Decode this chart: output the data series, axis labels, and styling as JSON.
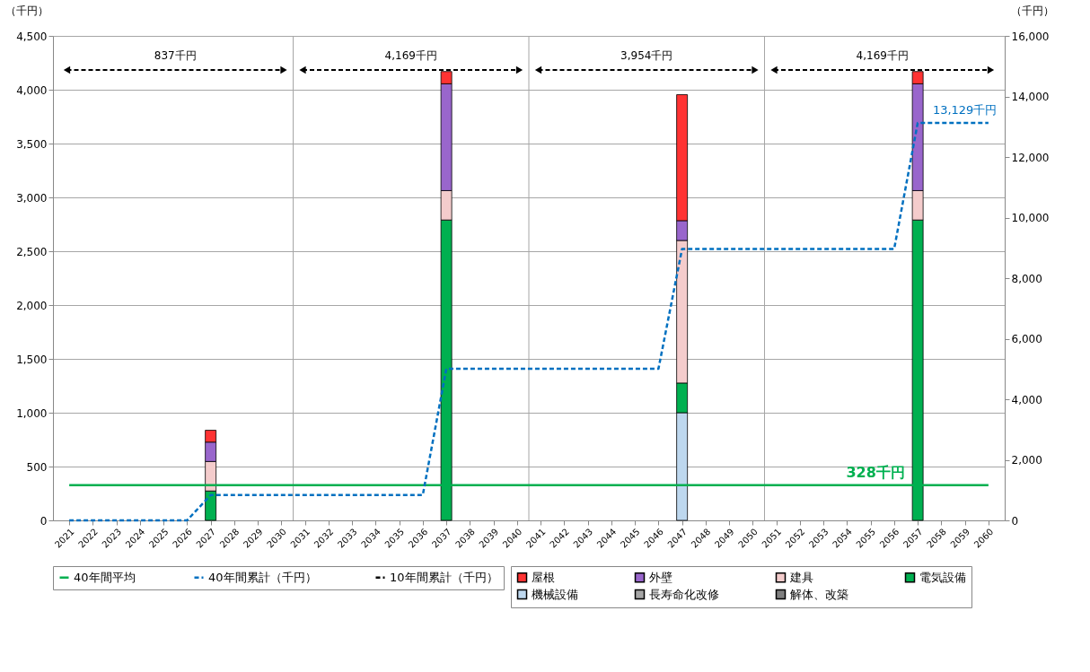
{
  "chart_data": {
    "type": "bar",
    "stacked": true,
    "ylabel": "（千円）",
    "y2label": "（千円）",
    "categories": [
      "2021",
      "2022",
      "2023",
      "2024",
      "2025",
      "2026",
      "2027",
      "2028",
      "2029",
      "2030",
      "2031",
      "2032",
      "2033",
      "2034",
      "2035",
      "2036",
      "2037",
      "2038",
      "2039",
      "2040",
      "2041",
      "2042",
      "2043",
      "2044",
      "2045",
      "2046",
      "2047",
      "2048",
      "2049",
      "2050",
      "2051",
      "2052",
      "2053",
      "2054",
      "2055",
      "2056",
      "2057",
      "2058",
      "2059",
      "2060"
    ],
    "ylim": [
      0,
      4500
    ],
    "yticks": [
      0,
      500,
      {
        "value": 1000,
        "label": "1,000"
      },
      {
        "value": 1500,
        "label": "1,500"
      },
      {
        "value": 2000,
        "label": "2,000"
      },
      {
        "value": 2500,
        "label": "2,500"
      },
      {
        "value": 3000,
        "label": "3,000"
      },
      {
        "value": 3500,
        "label": "3,500"
      },
      {
        "value": 4000,
        "label": "4,000"
      },
      {
        "value": 4500,
        "label": "4,500"
      }
    ],
    "y2lim": [
      0,
      16000
    ],
    "y2ticks": [
      0,
      {
        "value": 2000,
        "label": "2,000"
      },
      {
        "value": 4000,
        "label": "4,000"
      },
      {
        "value": 6000,
        "label": "6,000"
      },
      {
        "value": 8000,
        "label": "8,000"
      },
      {
        "value": 10000,
        "label": "10,000"
      },
      {
        "value": 12000,
        "label": "12,000"
      },
      {
        "value": 14000,
        "label": "14,000"
      },
      {
        "value": 16000,
        "label": "16,000"
      }
    ],
    "grid": "y",
    "legend": "bottom",
    "ref_lines": [
      {
        "axis": "x",
        "value": "2031",
        "color": "#a6a6a6"
      },
      {
        "axis": "x",
        "value": "2041",
        "color": "#a6a6a6"
      },
      {
        "axis": "x",
        "value": "2051",
        "color": "#a6a6a6"
      }
    ],
    "annotations": [
      "837千円",
      "4,169千円",
      "3,954千円",
      "4,169千円"
    ],
    "series": [
      {
        "name": "解体、改築",
        "color": "#7f7f7f",
        "values": [
          null,
          null,
          null,
          null,
          null,
          null,
          null,
          null,
          null,
          null,
          null,
          null,
          null,
          null,
          null,
          null,
          null,
          null,
          null,
          null,
          null,
          null,
          null,
          null,
          null,
          null,
          null,
          null,
          null,
          null,
          null,
          null,
          null,
          null,
          null,
          null,
          null,
          null,
          null,
          null
        ]
      },
      {
        "name": "長寿命化改修",
        "color": "#a6a6a6",
        "values": [
          null,
          null,
          null,
          null,
          null,
          null,
          null,
          null,
          null,
          null,
          null,
          null,
          null,
          null,
          null,
          null,
          null,
          null,
          null,
          null,
          null,
          null,
          null,
          null,
          null,
          null,
          null,
          null,
          null,
          null,
          null,
          null,
          null,
          null,
          null,
          null,
          null,
          null,
          null,
          null
        ]
      },
      {
        "name": "機械設備",
        "color": "#bdd7ee",
        "values": [
          null,
          null,
          null,
          null,
          null,
          null,
          null,
          null,
          null,
          null,
          null,
          null,
          null,
          null,
          null,
          null,
          null,
          null,
          null,
          null,
          null,
          null,
          null,
          null,
          null,
          null,
          1000,
          null,
          null,
          null,
          null,
          null,
          null,
          null,
          null,
          null,
          null,
          null,
          null,
          null
        ]
      },
      {
        "name": "電気設備",
        "color": "#00b050",
        "values": [
          null,
          null,
          null,
          null,
          null,
          null,
          273,
          null,
          null,
          null,
          null,
          null,
          null,
          null,
          null,
          null,
          2790,
          null,
          null,
          null,
          null,
          null,
          null,
          null,
          null,
          null,
          276,
          null,
          null,
          null,
          null,
          null,
          null,
          null,
          null,
          null,
          2790,
          null,
          null,
          null
        ]
      },
      {
        "name": "建具",
        "color": "#f4cccc",
        "values": [
          null,
          null,
          null,
          null,
          null,
          null,
          274,
          null,
          null,
          null,
          null,
          null,
          null,
          null,
          null,
          null,
          273,
          null,
          null,
          null,
          null,
          null,
          null,
          null,
          null,
          null,
          1324,
          null,
          null,
          null,
          null,
          null,
          null,
          null,
          null,
          null,
          273,
          null,
          null,
          null
        ]
      },
      {
        "name": "外壁",
        "color": "#9966cc",
        "values": [
          null,
          null,
          null,
          null,
          null,
          null,
          180,
          null,
          null,
          null,
          null,
          null,
          null,
          null,
          null,
          null,
          992,
          null,
          null,
          null,
          null,
          null,
          null,
          null,
          null,
          null,
          184,
          null,
          null,
          null,
          null,
          null,
          null,
          null,
          null,
          null,
          992,
          null,
          null,
          null
        ]
      },
      {
        "name": "屋根",
        "color": "#ff3333",
        "values": [
          null,
          null,
          null,
          null,
          null,
          null,
          110,
          null,
          null,
          null,
          null,
          null,
          null,
          null,
          null,
          null,
          114,
          null,
          null,
          null,
          null,
          null,
          null,
          null,
          null,
          null,
          1170,
          null,
          null,
          null,
          null,
          null,
          null,
          null,
          null,
          null,
          114,
          null,
          null,
          null
        ]
      },
      {
        "name": "40年間平均",
        "type": "line",
        "line_style": "solid",
        "color": "#00b050",
        "values": [
          328,
          328,
          328,
          328,
          328,
          328,
          328,
          328,
          328,
          328,
          328,
          328,
          328,
          328,
          328,
          328,
          328,
          328,
          328,
          328,
          328,
          328,
          328,
          328,
          328,
          328,
          328,
          328,
          328,
          328,
          328,
          328,
          328,
          328,
          328,
          328,
          328,
          328,
          328,
          328
        ],
        "value_labels": [
          null,
          null,
          null,
          null,
          null,
          null,
          null,
          null,
          null,
          null,
          null,
          null,
          null,
          null,
          null,
          null,
          null,
          null,
          null,
          null,
          null,
          null,
          null,
          null,
          null,
          null,
          null,
          null,
          null,
          null,
          null,
          null,
          null,
          null,
          null,
          "328千円",
          null,
          null,
          null,
          null
        ]
      },
      {
        "name": "40年間累計（千円）",
        "type": "line",
        "axis": "y2",
        "line_style": "dashed",
        "color": "#0070c0",
        "values": [
          0,
          0,
          0,
          0,
          0,
          0,
          837,
          837,
          837,
          837,
          837,
          837,
          837,
          837,
          837,
          837,
          5006,
          5006,
          5006,
          5006,
          5006,
          5006,
          5006,
          5006,
          5006,
          5006,
          8960,
          8960,
          8960,
          8960,
          8960,
          8960,
          8960,
          8960,
          8960,
          8960,
          13129,
          13129,
          13129,
          13129
        ],
        "value_labels": [
          null,
          null,
          null,
          null,
          null,
          null,
          null,
          null,
          null,
          null,
          null,
          null,
          null,
          null,
          null,
          null,
          null,
          null,
          null,
          null,
          null,
          null,
          null,
          null,
          null,
          null,
          null,
          null,
          null,
          null,
          null,
          null,
          null,
          null,
          null,
          null,
          null,
          null,
          "13,129千円",
          null
        ]
      },
      {
        "name": "10年間累計（千円）",
        "type": "line",
        "line_style": "dashed",
        "color": "#000000",
        "values": [
          null,
          null,
          null,
          null,
          null,
          null,
          null,
          null,
          null,
          null,
          null,
          null,
          null,
          null,
          null,
          null,
          null,
          null,
          null,
          null,
          null,
          null,
          null,
          null,
          null,
          null,
          null,
          null,
          null,
          null,
          null,
          null,
          null,
          null,
          null,
          null,
          null,
          null,
          null,
          null
        ]
      }
    ]
  }
}
